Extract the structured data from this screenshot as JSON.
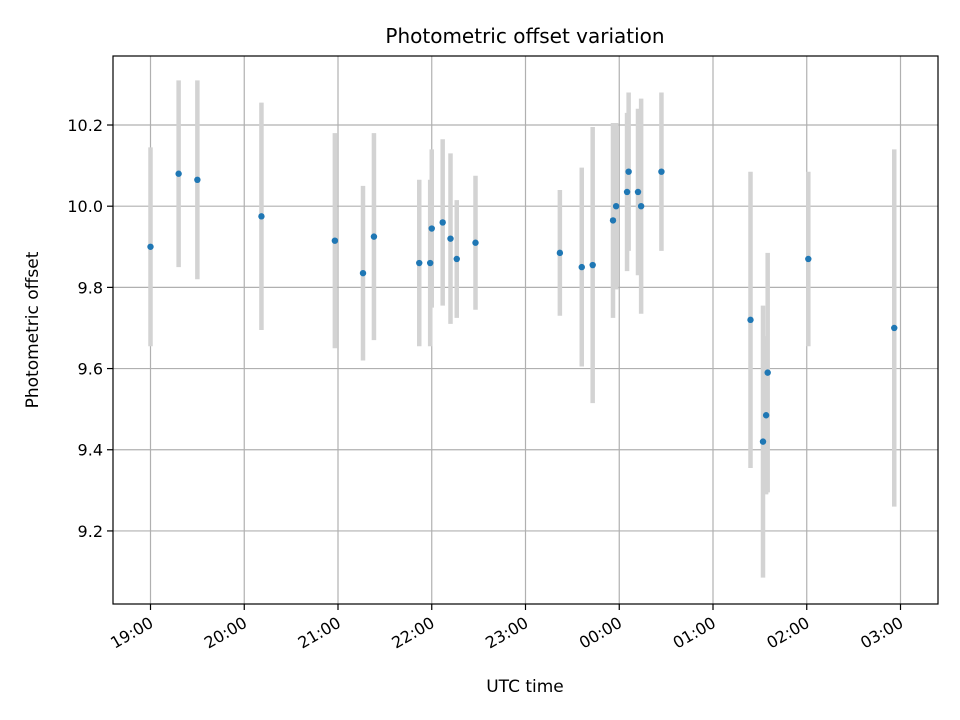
{
  "chart_data": {
    "type": "scatter",
    "title": "Photometric offset variation",
    "xlabel": "UTC time",
    "ylabel": "Photometric offset",
    "x_is_time": true,
    "x_tick_labels": [
      "19:00",
      "20:00",
      "21:00",
      "22:00",
      "23:00",
      "00:00",
      "01:00",
      "02:00",
      "03:00"
    ],
    "y_ticks": [
      9.2,
      9.4,
      9.6,
      9.8,
      10.0,
      10.2
    ],
    "y_tick_labels": [
      "9.2",
      "9.4",
      "9.6",
      "9.8",
      "10.0",
      "10.2"
    ],
    "xlim": [
      "18:36",
      "03:24"
    ],
    "ylim": [
      9.02,
      10.37
    ],
    "grid": true,
    "point_color": "#1f77b4",
    "errorbar_color": "#d3d3d3",
    "points": [
      {
        "x": "19:00",
        "y": 9.9,
        "yerr": 0.245
      },
      {
        "x": "19:18",
        "y": 10.08,
        "yerr": 0.23
      },
      {
        "x": "19:30",
        "y": 10.065,
        "yerr": 0.245
      },
      {
        "x": "20:11",
        "y": 9.975,
        "yerr": 0.28
      },
      {
        "x": "20:58",
        "y": 9.915,
        "yerr": 0.265
      },
      {
        "x": "21:16",
        "y": 9.835,
        "yerr": 0.215
      },
      {
        "x": "21:23",
        "y": 9.925,
        "yerr": 0.255
      },
      {
        "x": "21:52",
        "y": 9.86,
        "yerr": 0.205
      },
      {
        "x": "21:59",
        "y": 9.86,
        "yerr": 0.205
      },
      {
        "x": "22:00",
        "y": 9.945,
        "yerr": 0.195
      },
      {
        "x": "22:07",
        "y": 9.96,
        "yerr": 0.205
      },
      {
        "x": "22:12",
        "y": 9.92,
        "yerr": 0.21
      },
      {
        "x": "22:16",
        "y": 9.87,
        "yerr": 0.145
      },
      {
        "x": "22:28",
        "y": 9.91,
        "yerr": 0.165
      },
      {
        "x": "23:22",
        "y": 9.885,
        "yerr": 0.155
      },
      {
        "x": "23:36",
        "y": 9.85,
        "yerr": 0.245
      },
      {
        "x": "23:43",
        "y": 9.855,
        "yerr": 0.34
      },
      {
        "x": "23:56",
        "y": 9.965,
        "yerr": 0.24
      },
      {
        "x": "23:58",
        "y": 10.0,
        "yerr": 0.205
      },
      {
        "x": "00:05",
        "y": 10.035,
        "yerr": 0.195
      },
      {
        "x": "00:06",
        "y": 10.085,
        "yerr": 0.195
      },
      {
        "x": "00:12",
        "y": 10.035,
        "yerr": 0.205
      },
      {
        "x": "00:14",
        "y": 10.0,
        "yerr": 0.265
      },
      {
        "x": "00:27",
        "y": 10.085,
        "yerr": 0.195
      },
      {
        "x": "01:24",
        "y": 9.72,
        "yerr": 0.365
      },
      {
        "x": "01:32",
        "y": 9.42,
        "yerr": 0.335
      },
      {
        "x": "01:34",
        "y": 9.485,
        "yerr": 0.195
      },
      {
        "x": "01:35",
        "y": 9.59,
        "yerr": 0.295
      },
      {
        "x": "02:01",
        "y": 9.87,
        "yerr": 0.215
      },
      {
        "x": "02:56",
        "y": 9.7,
        "yerr": 0.44
      }
    ]
  }
}
